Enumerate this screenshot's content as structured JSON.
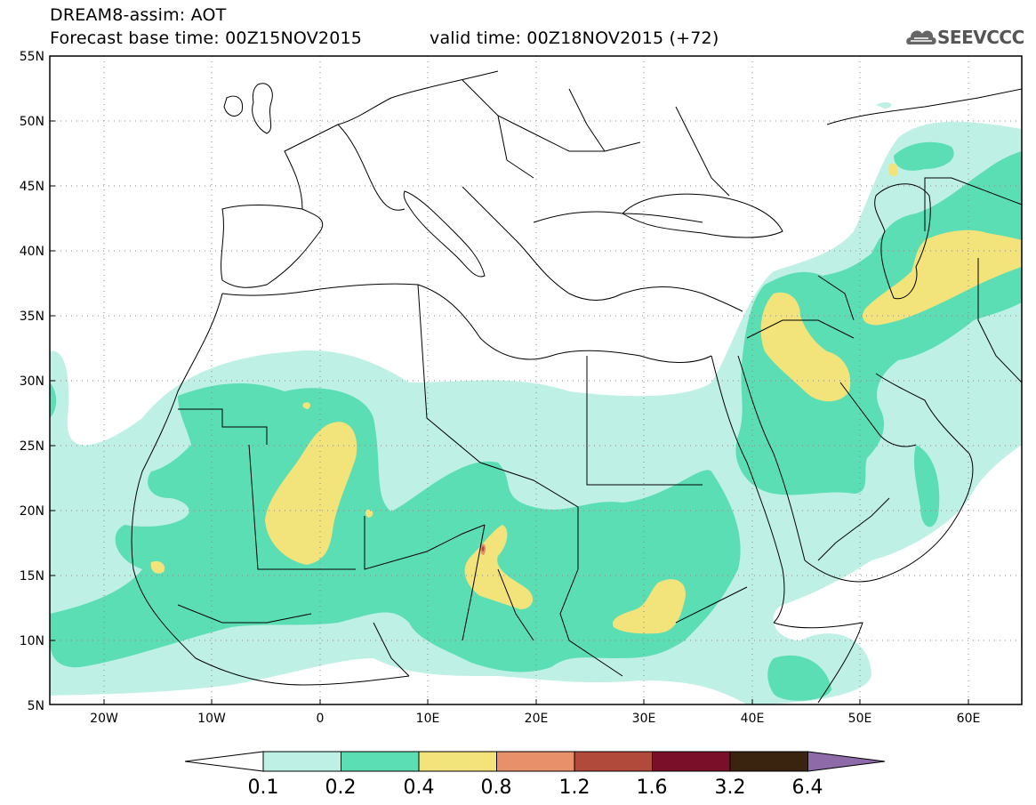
{
  "header": {
    "title": "DREAM8-assim: AOT",
    "base_time": "Forecast base time: 00Z15NOV2015",
    "valid_time": "valid time: 00Z18NOV2015 (+72)",
    "logo_text": "SEEVCCC"
  },
  "map": {
    "lon_range": [
      -25,
      65
    ],
    "lat_range": [
      5,
      55
    ],
    "lat_ticks": [
      "55N",
      "50N",
      "45N",
      "40N",
      "35N",
      "30N",
      "25N",
      "20N",
      "15N",
      "10N",
      "5N"
    ],
    "lon_ticks": [
      "20W",
      "10W",
      "0",
      "10E",
      "20E",
      "30E",
      "40E",
      "50E",
      "60E"
    ],
    "grid": "dotted"
  },
  "colorbar": {
    "labels": [
      "0.1",
      "0.2",
      "0.4",
      "0.8",
      "1.2",
      "1.6",
      "3.2",
      "6.4"
    ],
    "colors": [
      "#ffffff",
      "#bff0e6",
      "#5cdeb4",
      "#f2e37a",
      "#e8906a",
      "#b24a3c",
      "#7a0f2a",
      "#3a2410",
      "#8e6aa8"
    ]
  },
  "colors": {
    "very_light": "#bff0e6",
    "light": "#5cdeb4",
    "medium": "#f2e37a",
    "high": "#e8906a",
    "very_high": "#b24a3c"
  }
}
